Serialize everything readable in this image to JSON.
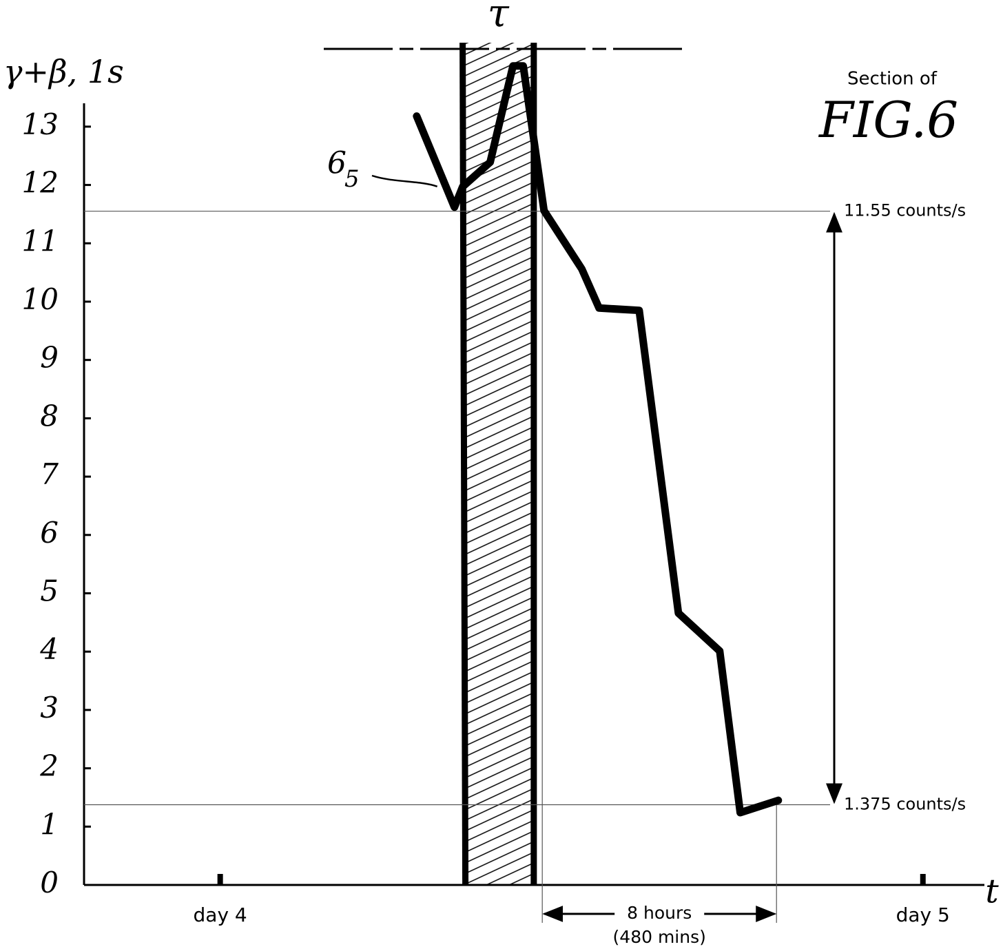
{
  "chart_data": {
    "type": "line",
    "title": "FIG.6",
    "subtitle": "Section of",
    "y_label": "γ+β, 1s",
    "x_label": "t",
    "xlim": [
      -4.65,
      26.1
    ],
    "xticks": [
      {
        "value": 0,
        "label": "day 4"
      },
      {
        "value": 24,
        "label": "day 5"
      }
    ],
    "ylim": [
      0,
      13.4
    ],
    "yticks": [
      0,
      1,
      2,
      3,
      4,
      5,
      6,
      7,
      8,
      9,
      10,
      11,
      12,
      13
    ],
    "series": [
      {
        "color": "#000000",
        "x": [
          6.71,
          8.0,
          8.28,
          9.22,
          10.0,
          10.35,
          11.06,
          12.35,
          12.94,
          14.31,
          15.65,
          17.06,
          17.76,
          19.06
        ],
        "values": [
          13.18,
          11.62,
          11.97,
          12.39,
          14.04,
          14.04,
          11.56,
          10.56,
          9.89,
          9.85,
          4.66,
          4.01,
          1.24,
          1.45
        ]
      }
    ],
    "band": {
      "x": [
        8.28,
        10.71
      ],
      "label": "τ"
    },
    "hlines": [
      {
        "value": 11.55,
        "label": "11.55 counts/s"
      },
      {
        "value": 1.375,
        "label": "1.375 counts/s"
      }
    ],
    "span": {
      "x": [
        11.0,
        19.0
      ],
      "label": "8 hours",
      "sublabel": "(480 mins)"
    },
    "annotation": {
      "text": "6",
      "subscript": "5"
    }
  }
}
